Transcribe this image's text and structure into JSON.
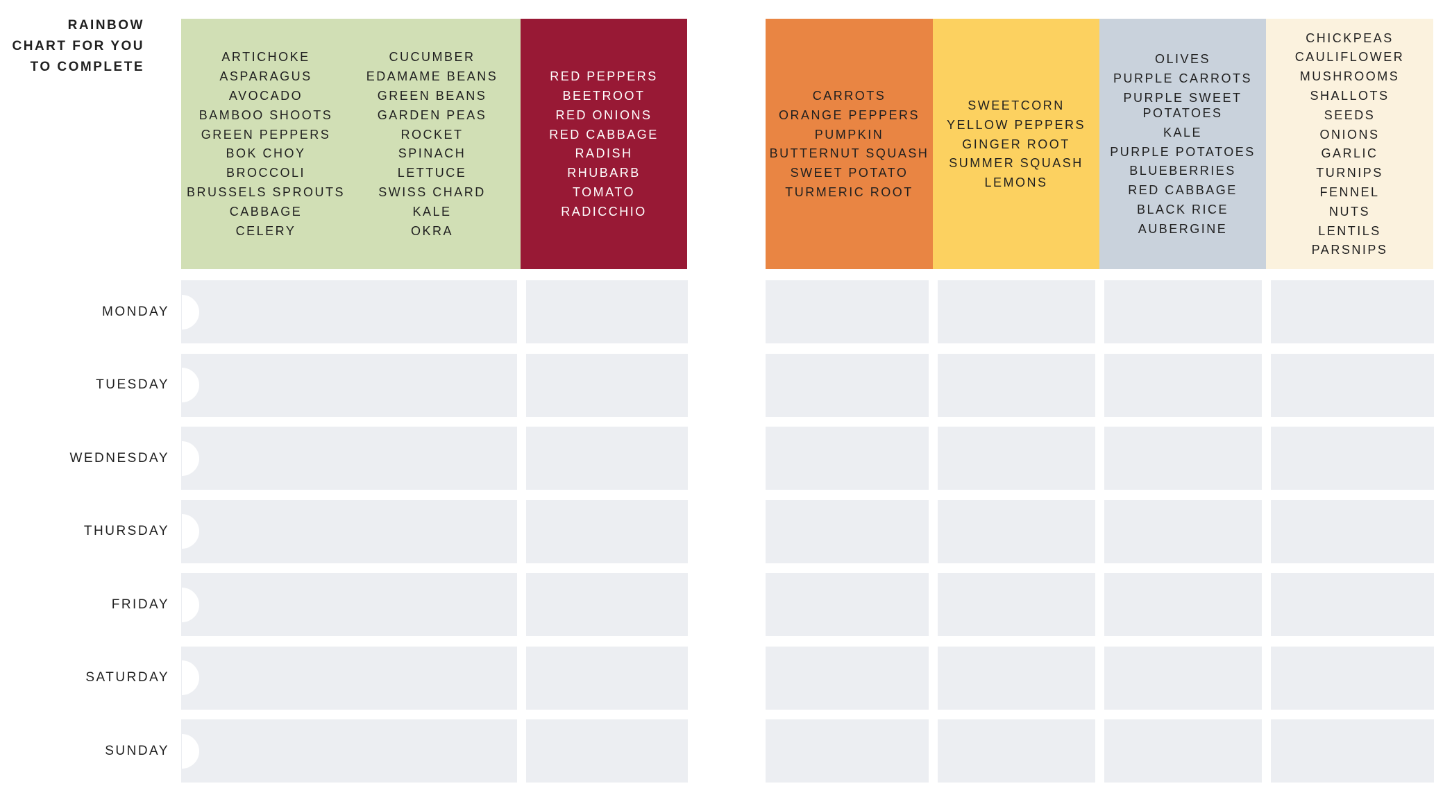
{
  "title_lines": [
    "RAINBOW",
    "CHART FOR YOU",
    "TO COMPLETE"
  ],
  "colors": {
    "green": "#d1dfb5",
    "red": "#981935",
    "orange": "#e98543",
    "yellow": "#fcd160",
    "blue_grey": "#c9d2dc",
    "cream": "#fbf2de",
    "cell": "#eceef2"
  },
  "headers": {
    "green_1": [
      "ARTICHOKE",
      "ASPARAGUS",
      "AVOCADO",
      "BAMBOO SHOOTS",
      "GREEN PEPPERS",
      "BOK CHOY",
      "BROCCOLI",
      "BRUSSELS SPROUTS",
      "CABBAGE",
      "CELERY"
    ],
    "green_2": [
      "CUCUMBER",
      "EDAMAME BEANS",
      "GREEN BEANS",
      "GARDEN PEAS",
      "ROCKET",
      "SPINACH",
      "LETTUCE",
      "SWISS CHARD",
      "KALE",
      "OKRA"
    ],
    "red": [
      "RED PEPPERS",
      "BEETROOT",
      "RED ONIONS",
      "RED CABBAGE",
      "RADISH",
      "RHUBARB",
      "TOMATO",
      "RADICCHIO"
    ],
    "orange": [
      "CARROTS",
      "ORANGE PEPPERS",
      "PUMPKIN",
      "BUTTERNUT SQUASH",
      "SWEET POTATO",
      "TURMERIC ROOT"
    ],
    "yellow": [
      "SWEETCORN",
      "YELLOW PEPPERS",
      "GINGER ROOT",
      "SUMMER SQUASH",
      "LEMONS"
    ],
    "purple": [
      "OLIVES",
      "PURPLE CARROTS",
      "PURPLE SWEET POTATOES",
      "KALE",
      "PURPLE POTATOES",
      "BLUEBERRIES",
      "RED CABBAGE",
      "BLACK RICE",
      "AUBERGINE"
    ],
    "white": [
      "CHICKPEAS",
      "CAULIFLOWER",
      "MUSHROOMS",
      "SHALLOTS",
      "SEEDS",
      "ONIONS",
      "GARLIC",
      "TURNIPS",
      "FENNEL",
      "NUTS",
      "LENTILS",
      "PARSNIPS"
    ]
  },
  "days": [
    "MONDAY",
    "TUESDAY",
    "WEDNESDAY",
    "THURSDAY",
    "FRIDAY",
    "SATURDAY",
    "SUNDAY"
  ]
}
